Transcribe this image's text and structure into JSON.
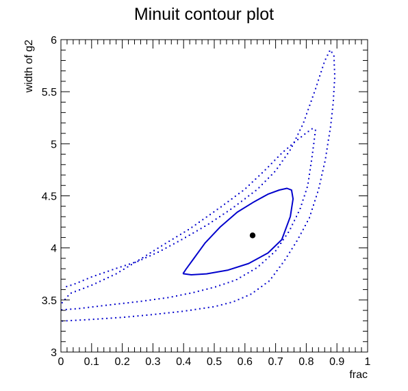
{
  "chart_data": {
    "type": "scatter",
    "title": "Minuit contour plot",
    "xlabel": "frac",
    "ylabel": "width of g2",
    "xlim": [
      0,
      1
    ],
    "ylim": [
      3,
      6
    ],
    "x_ticks": [
      "0",
      "0.1",
      "0.2",
      "0.3",
      "0.4",
      "0.5",
      "0.6",
      "0.7",
      "0.8",
      "0.9",
      "1"
    ],
    "y_ticks": [
      "3",
      "3.5",
      "4",
      "4.5",
      "5",
      "5.5",
      "6"
    ],
    "grid": false,
    "legend": "none",
    "colors": {
      "contour": "#0000cc",
      "best_fit": "#000000",
      "axes": "#000000"
    },
    "best_fit": {
      "x": 0.625,
      "y": 4.12
    },
    "series": [
      {
        "style": "solid-line",
        "points": [
          [
            0.398,
            3.752
          ],
          [
            0.425,
            3.742
          ],
          [
            0.475,
            3.751
          ],
          [
            0.545,
            3.787
          ],
          [
            0.612,
            3.85
          ],
          [
            0.675,
            3.951
          ],
          [
            0.72,
            4.079
          ],
          [
            0.748,
            4.301
          ],
          [
            0.757,
            4.471
          ],
          [
            0.752,
            4.555
          ],
          [
            0.737,
            4.572
          ],
          [
            0.712,
            4.556
          ],
          [
            0.675,
            4.516
          ],
          [
            0.63,
            4.443
          ],
          [
            0.575,
            4.343
          ],
          [
            0.52,
            4.203
          ],
          [
            0.47,
            4.048
          ],
          [
            0.432,
            3.893
          ],
          [
            0.408,
            3.796
          ],
          [
            0.398,
            3.752
          ]
        ]
      },
      {
        "style": "dotted",
        "points": [
          [
            0.003,
            3.405
          ],
          [
            0.06,
            3.418
          ],
          [
            0.15,
            3.45
          ],
          [
            0.25,
            3.483
          ],
          [
            0.35,
            3.523
          ],
          [
            0.43,
            3.57
          ],
          [
            0.5,
            3.622
          ],
          [
            0.57,
            3.691
          ],
          [
            0.64,
            3.811
          ],
          [
            0.7,
            3.971
          ],
          [
            0.745,
            4.165
          ],
          [
            0.78,
            4.375
          ],
          [
            0.805,
            4.6
          ],
          [
            0.82,
            4.9
          ],
          [
            0.83,
            5.13
          ],
          [
            0.822,
            5.15
          ],
          [
            0.8,
            5.104
          ],
          [
            0.765,
            5.023
          ],
          [
            0.72,
            4.91
          ],
          [
            0.67,
            4.76
          ],
          [
            0.6,
            4.564
          ],
          [
            0.52,
            4.39
          ],
          [
            0.42,
            4.183
          ],
          [
            0.33,
            4.023
          ],
          [
            0.25,
            3.875
          ],
          [
            0.18,
            3.751
          ],
          [
            0.1,
            3.641
          ],
          [
            0.03,
            3.563
          ],
          [
            0.003,
            3.47
          ]
        ]
      },
      {
        "style": "dotted",
        "points": [
          [
            0.005,
            3.298
          ],
          [
            0.1,
            3.313
          ],
          [
            0.2,
            3.333
          ],
          [
            0.3,
            3.36
          ],
          [
            0.4,
            3.392
          ],
          [
            0.5,
            3.436
          ],
          [
            0.56,
            3.48
          ],
          [
            0.62,
            3.556
          ],
          [
            0.68,
            3.684
          ],
          [
            0.73,
            3.882
          ],
          [
            0.77,
            4.069
          ],
          [
            0.81,
            4.287
          ],
          [
            0.84,
            4.56
          ],
          [
            0.862,
            4.845
          ],
          [
            0.88,
            5.18
          ],
          [
            0.888,
            5.4
          ],
          [
            0.893,
            5.65
          ],
          [
            0.89,
            5.849
          ],
          [
            0.878,
            5.902
          ],
          [
            0.86,
            5.795
          ],
          [
            0.83,
            5.525
          ],
          [
            0.79,
            5.194
          ],
          [
            0.75,
            4.951
          ],
          [
            0.7,
            4.74
          ],
          [
            0.64,
            4.561
          ],
          [
            0.56,
            4.383
          ],
          [
            0.48,
            4.226
          ],
          [
            0.4,
            4.09
          ],
          [
            0.32,
            3.963
          ],
          [
            0.25,
            3.87
          ],
          [
            0.18,
            3.803
          ],
          [
            0.1,
            3.721
          ],
          [
            0.04,
            3.648
          ],
          [
            0.008,
            3.62
          ]
        ]
      }
    ]
  }
}
